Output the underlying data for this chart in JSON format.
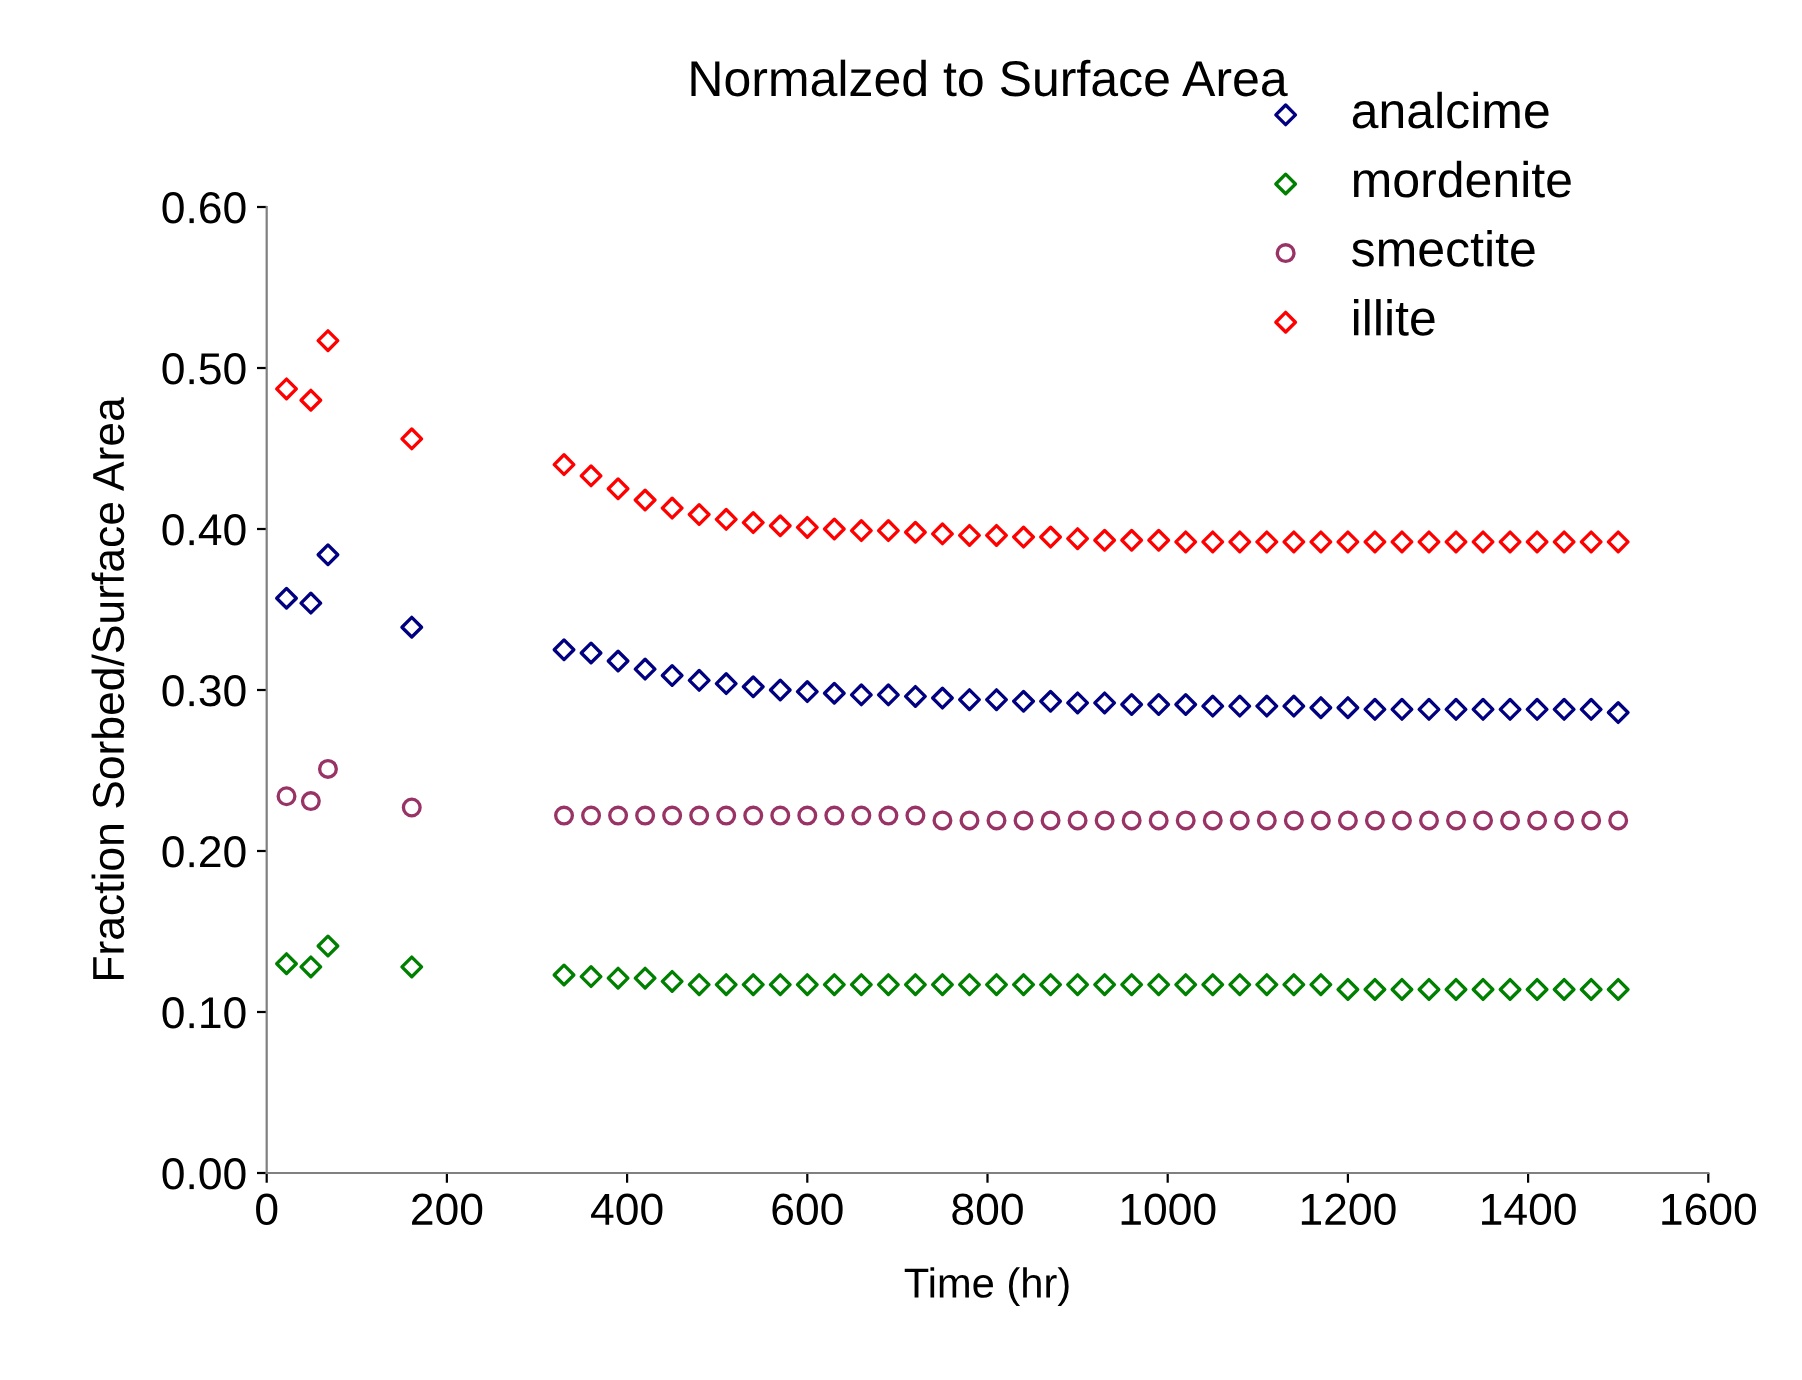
{
  "chart_data": {
    "type": "scatter",
    "title": "Normalzed to Surface Area",
    "xlabel": "Time (hr)",
    "ylabel": "Fraction Sorbed/Surface Area",
    "xlim": [
      0,
      1600
    ],
    "xticks": [
      0,
      200,
      400,
      600,
      800,
      1000,
      1200,
      1400,
      1600
    ],
    "ylim": [
      0,
      0.6
    ],
    "yticks": [
      {
        "value": 0,
        "label": "0.00"
      },
      {
        "value": 0.1,
        "label": "0.10"
      },
      {
        "value": 0.2,
        "label": "0.20"
      },
      {
        "value": 0.3,
        "label": "0.30"
      },
      {
        "value": 0.4,
        "label": "0.40"
      },
      {
        "value": 0.5,
        "label": "0.50"
      },
      {
        "value": 0.6,
        "label": "0.60"
      }
    ],
    "grid": false,
    "legend": "top right",
    "x": [
      22,
      49,
      68,
      161,
      330,
      360,
      390,
      420,
      450,
      480,
      510,
      540,
      570,
      600,
      630,
      660,
      690,
      720,
      750,
      780,
      810,
      840,
      870,
      900,
      930,
      960,
      990,
      1020,
      1050,
      1080,
      1110,
      1140,
      1170,
      1200,
      1230,
      1260,
      1290,
      1320,
      1350,
      1380,
      1410,
      1440,
      1470,
      1500
    ],
    "series": [
      {
        "name": "analcime",
        "color": "#000080",
        "marker": "diamond",
        "values": [
          0.357,
          0.354,
          0.384,
          0.339,
          0.325,
          0.323,
          0.318,
          0.313,
          0.309,
          0.306,
          0.304,
          0.302,
          0.3,
          0.299,
          0.298,
          0.297,
          0.297,
          0.296,
          0.295,
          0.294,
          0.294,
          0.293,
          0.293,
          0.292,
          0.292,
          0.291,
          0.291,
          0.291,
          0.29,
          0.29,
          0.29,
          0.29,
          0.289,
          0.289,
          0.288,
          0.288,
          0.288,
          0.288,
          0.288,
          0.288,
          0.288,
          0.288,
          0.288,
          0.286
        ]
      },
      {
        "name": "mordenite",
        "color": "#008000",
        "marker": "diamond",
        "values": [
          0.13,
          0.128,
          0.141,
          0.128,
          0.123,
          0.122,
          0.121,
          0.121,
          0.119,
          0.117,
          0.117,
          0.117,
          0.117,
          0.117,
          0.117,
          0.117,
          0.117,
          0.117,
          0.117,
          0.117,
          0.117,
          0.117,
          0.117,
          0.117,
          0.117,
          0.117,
          0.117,
          0.117,
          0.117,
          0.117,
          0.117,
          0.117,
          0.117,
          0.114,
          0.114,
          0.114,
          0.114,
          0.114,
          0.114,
          0.114,
          0.114,
          0.114,
          0.114,
          0.114
        ]
      },
      {
        "name": "smectite",
        "color": "#993366",
        "marker": "circle",
        "values": [
          0.234,
          0.231,
          0.251,
          0.227,
          0.222,
          0.222,
          0.222,
          0.222,
          0.222,
          0.222,
          0.222,
          0.222,
          0.222,
          0.222,
          0.222,
          0.222,
          0.222,
          0.222,
          0.219,
          0.219,
          0.219,
          0.219,
          0.219,
          0.219,
          0.219,
          0.219,
          0.219,
          0.219,
          0.219,
          0.219,
          0.219,
          0.219,
          0.219,
          0.219,
          0.219,
          0.219,
          0.219,
          0.219,
          0.219,
          0.219,
          0.219,
          0.219,
          0.219,
          0.219
        ]
      },
      {
        "name": "illite",
        "color": "#ff0000",
        "marker": "diamond",
        "values": [
          0.487,
          0.48,
          0.517,
          0.456,
          0.44,
          0.433,
          0.425,
          0.418,
          0.413,
          0.409,
          0.406,
          0.404,
          0.402,
          0.401,
          0.4,
          0.399,
          0.399,
          0.398,
          0.397,
          0.396,
          0.396,
          0.395,
          0.395,
          0.394,
          0.393,
          0.393,
          0.393,
          0.392,
          0.392,
          0.392,
          0.392,
          0.392,
          0.392,
          0.392,
          0.392,
          0.392,
          0.392,
          0.392,
          0.392,
          0.392,
          0.392,
          0.392,
          0.392,
          0.392
        ]
      }
    ]
  }
}
